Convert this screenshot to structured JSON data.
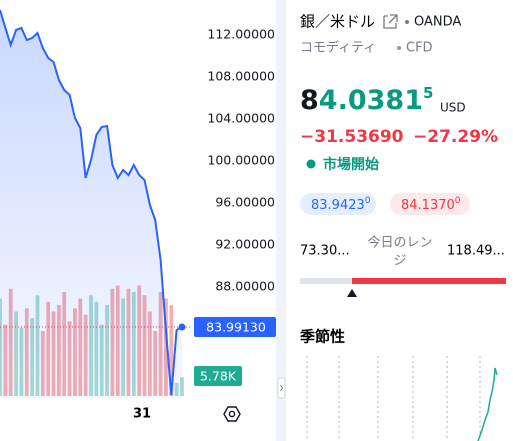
{
  "chart": {
    "type": "line",
    "ylim": [
      77.24,
      115.33
    ],
    "yticks": [
      {
        "value": 112,
        "label": "112.00000"
      },
      {
        "value": 108,
        "label": "108.00000"
      },
      {
        "value": 104,
        "label": "104.00000"
      },
      {
        "value": 100,
        "label": "100.00000"
      },
      {
        "value": 96,
        "label": "96.00000"
      },
      {
        "value": 92,
        "label": "92.00000"
      },
      {
        "value": 88,
        "label": "88.00000"
      }
    ],
    "values": [
      114.38,
      112.67,
      111.05,
      112.48,
      112.67,
      111.52,
      111.71,
      112.19,
      110.76,
      109.81,
      109.43,
      107.71,
      106.76,
      106.29,
      104.1,
      103.14,
      98.38,
      100.1,
      102.48,
      103.24,
      103.33,
      99.62,
      98.38,
      99.14,
      98.67,
      99.62,
      98.67,
      98.19,
      95.81,
      94.38,
      90.57,
      83.9,
      77.71,
      83.9,
      84.19
    ],
    "color": "#2962ff",
    "volume": {
      "values": [
        30,
        22,
        33,
        26,
        21,
        27,
        24,
        31,
        20,
        29,
        26,
        28,
        32,
        23,
        27,
        30,
        25,
        31,
        29,
        22,
        28,
        33,
        34,
        30,
        33,
        32,
        34,
        31,
        26,
        20,
        32,
        30,
        28,
        4,
        5.78
      ],
      "ylim": [
        0,
        40
      ],
      "up_color": "#a8dcd4",
      "down_color": "#f7aeb0"
    },
    "last_price_label": "83.99130",
    "last_volume_label": "5.78K",
    "x_label": "31"
  },
  "symbol": {
    "name": "銀／米ドル",
    "exchange": "OANDA",
    "category": "コモディティ",
    "kind": "CFD",
    "price": {
      "lead": "8",
      "body": "4.0381",
      "tail": "5",
      "currency": "USD"
    },
    "change": "−31.53690",
    "change_percent": "−27.29%",
    "status": "市場開始",
    "bid": {
      "body": "83.9423",
      "tail": "0"
    },
    "ask": {
      "body": "84.1370",
      "tail": "0"
    },
    "range": {
      "low": "73.30...",
      "label_1": "今日のレン",
      "label_2": "ジ",
      "high": "118.49..."
    },
    "seasonality": "季節性"
  }
}
